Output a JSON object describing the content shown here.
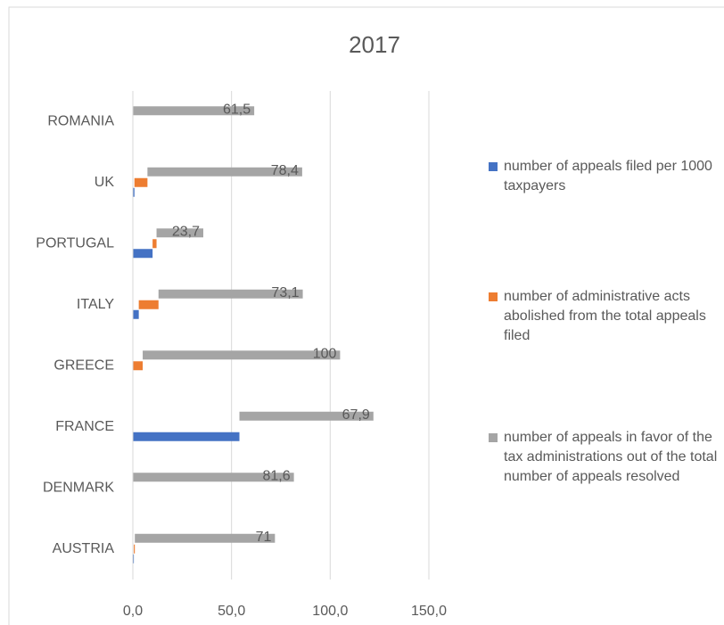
{
  "chart_data": {
    "type": "bar",
    "orientation": "horizontal",
    "stacked": true,
    "title": "2017",
    "categories": [
      "AUSTRIA",
      "DENMARK",
      "FRANCE",
      "GREECE",
      "ITALY",
      "PORTUGAL",
      "UK",
      "ROMANIA"
    ],
    "series": [
      {
        "name": "number of appeals filed per 1000 taxpayers",
        "color": "#4472c4",
        "values": [
          0.5,
          0,
          54,
          0,
          3,
          10,
          0.8,
          0
        ]
      },
      {
        "name": "number of administrative acts abolished from the total appeals filed",
        "color": "#ed7d31",
        "values": [
          0.5,
          0,
          0,
          5,
          10,
          2,
          6.6,
          0
        ]
      },
      {
        "name": "number of appeals in favor of the tax administrations out of the total number of appeals resolved",
        "color": "#a5a5a5",
        "values": [
          71,
          81.6,
          67.9,
          100,
          73.1,
          23.7,
          78.4,
          61.5
        ],
        "value_labels": [
          "71",
          "81,6",
          "67,9",
          "100",
          "73,1",
          "23,7",
          "78,4",
          "61,5"
        ]
      }
    ],
    "xlim": [
      0,
      150
    ],
    "xticks": [
      {
        "value": 0,
        "label": "0,0"
      },
      {
        "value": 50,
        "label": "50,0"
      },
      {
        "value": 100,
        "label": "100,0"
      },
      {
        "value": 150,
        "label": "150,0"
      }
    ],
    "grid": true,
    "legend": "right"
  }
}
